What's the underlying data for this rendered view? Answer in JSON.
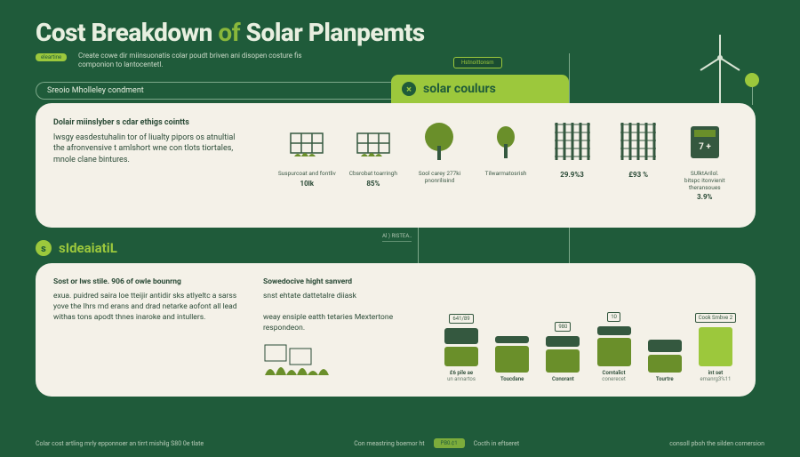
{
  "colors": {
    "bg": "#1f5b3a",
    "panel": "#f4f1e8",
    "accent": "#9cc83c",
    "accent_dark": "#6a8f2a",
    "text_light": "#e8efe0",
    "text_dark": "#2a4a36",
    "grid_dark": "#34583f",
    "line": "#7da88a"
  },
  "header": {
    "title_a": "Cost Breakdown",
    "title_b": "of",
    "title_c": "Solar Planpemts",
    "badge": "eleartine",
    "subtitle": "Create cowe dir miinsuonatis colar poudt briven ani disopen costure fis componion to lantocentetl."
  },
  "divider_label": "Sreoio Mholleley condment",
  "pill_above": "Hstnoittonsm",
  "tab": {
    "icon": "×",
    "label": "solar coulurs"
  },
  "panel1": {
    "lead_title": "Dolair miinslyber s cdar ethigs cointts",
    "lead_body": "lwsgy easdestuhalin tor of liualty pipors os atnultial the afronvensive t amlshort wne con tlots tiortales, mnole clane bintures.",
    "items": [
      {
        "name": "solar-panel-1",
        "label": "Suspurcoat and fontliv",
        "val": "10lk"
      },
      {
        "name": "solar-panel-2",
        "label": "Cbsrobat toarringh",
        "val": "85%"
      },
      {
        "name": "tree-large",
        "label": "Sool carey 277ki pnonrilisind",
        "val": ""
      },
      {
        "name": "tree-small",
        "label": "Tilwarmatosrish",
        "val": ""
      },
      {
        "name": "grid-1",
        "label": "",
        "val": "29.9%3"
      },
      {
        "name": "grid-2",
        "label": "",
        "val": "£93 %"
      },
      {
        "name": "calc",
        "label": "SUlktArilol. \\nbitspc itonvienit theransoues",
        "val": "3.9%"
      }
    ]
  },
  "sec2": {
    "icon": "s",
    "label": "sIdeaiatiL"
  },
  "mid_label": "Al ) RISTEA..",
  "panel2": {
    "col1_title": "Sost or lws stile. 906 of owle bounrng",
    "col1_body": "exua. puidred saira loe tteijir antidir sks atlyeltc a sarss yove the Ihrs md erans and drad netarke aofont all lead withas tons apodt thnes inaroke and intullers.",
    "col2_title": "Sowedocive hight sanverd",
    "col2_body": "snst ehtate dattetalre diiask\\n\\nweay ensiple eatth tetaries Mextertone respondeon.",
    "bars": [
      {
        "pill": "641/89",
        "h1": 18,
        "h2": 22,
        "label": "£6 pile ae",
        "sub": "un annartos"
      },
      {
        "pill": "",
        "h1": 8,
        "h2": 30,
        "label": "Toucdane",
        "sub": ""
      },
      {
        "pill": "980",
        "h1": 12,
        "h2": 26,
        "label": "Conorant",
        "sub": ""
      },
      {
        "pill": "10",
        "h1": 10,
        "h2": 32,
        "label": "Comtalict",
        "sub": "conerecet"
      },
      {
        "pill": "",
        "h1": 14,
        "h2": 20,
        "label": "Tourtre",
        "sub": ""
      },
      {
        "pill": "Cook Smbve 2",
        "h1": 0,
        "h2": 44,
        "label": "int set",
        "sub": "emanrg3%11",
        "special": true
      }
    ]
  },
  "footer": {
    "left": "Colar cost artling mrly epponnoer an tirrt mishilg S80 0e tlate",
    "mid1": "Con meastring boemor ht",
    "pill": "PB0.¢1",
    "mid2": "Cocth in eftseret",
    "right": "consoll pboh the silden cornersion"
  }
}
